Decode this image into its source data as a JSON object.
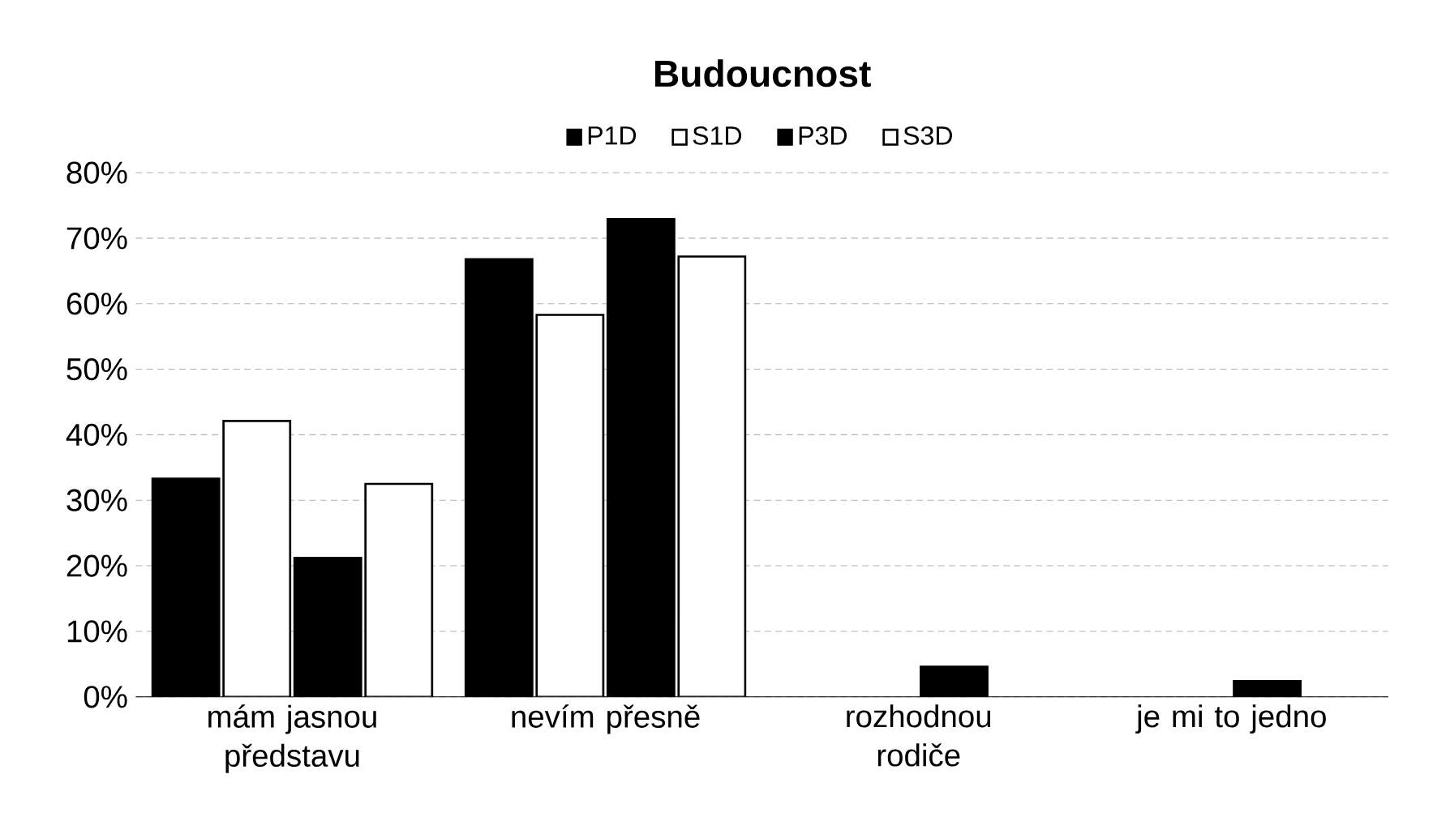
{
  "chart_data": {
    "type": "bar",
    "title": "Budoucnost",
    "categories": [
      "mám jasnou představu",
      "nevím přesně",
      "rozhodnou rodiče",
      "je mi to jedno"
    ],
    "series": [
      {
        "name": "P1D",
        "color": "#000000",
        "values": [
          33.3,
          66.8,
          null,
          null
        ]
      },
      {
        "name": "S1D",
        "color": "#ffffff",
        "values": [
          42.1,
          58.3,
          null,
          null
        ]
      },
      {
        "name": "P3D",
        "color": "#000000",
        "values": [
          21.2,
          72.9,
          4.6,
          2.4
        ]
      },
      {
        "name": "S3D",
        "color": "#ffffff",
        "values": [
          32.5,
          67.2,
          null,
          null
        ]
      }
    ],
    "ylim": [
      0,
      80
    ],
    "yticks": [
      {
        "value": 0,
        "label": "0%"
      },
      {
        "value": 10,
        "label": "10%"
      },
      {
        "value": 20,
        "label": "20%"
      },
      {
        "value": 30,
        "label": "30%"
      },
      {
        "value": 40,
        "label": "40%"
      },
      {
        "value": 50,
        "label": "50%"
      },
      {
        "value": 60,
        "label": "60%"
      },
      {
        "value": 70,
        "label": "70%"
      },
      {
        "value": 80,
        "label": "80%"
      }
    ],
    "grid": "y",
    "legend": "top"
  }
}
